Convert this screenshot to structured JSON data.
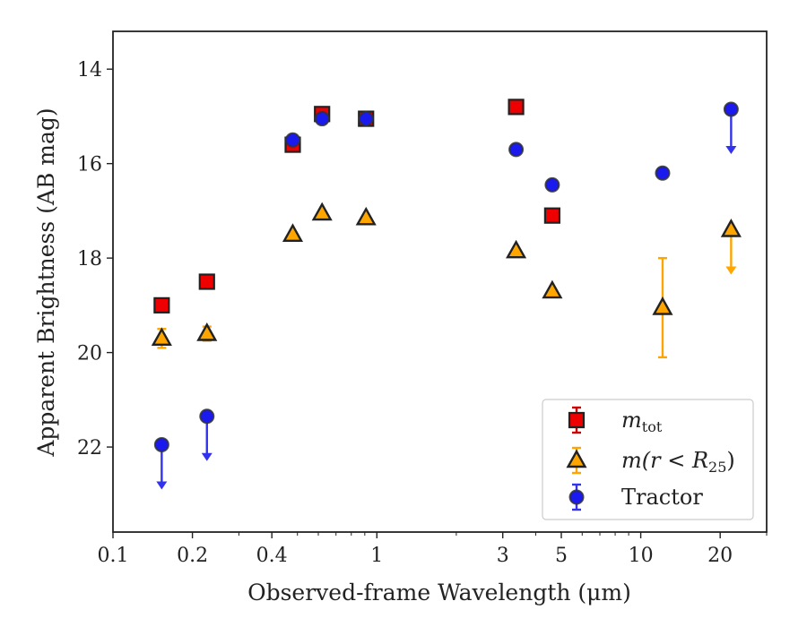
{
  "chart_data": {
    "type": "scatter",
    "xlabel": "Observed-frame Wavelength (μm)",
    "ylabel": "Apparent Brightness (AB mag)",
    "xscale": "log",
    "xlim": [
      0.1,
      30
    ],
    "ylim": [
      23.8,
      13.2
    ],
    "y_inverted": true,
    "x_ticks": [
      0.1,
      0.2,
      0.4,
      1,
      3,
      5,
      10,
      20
    ],
    "x_tick_labels": [
      "0.1",
      "0.2",
      "0.4",
      "1",
      "3",
      "5",
      "10",
      "20"
    ],
    "y_ticks": [
      14,
      16,
      18,
      20,
      22
    ],
    "y_tick_labels": [
      "14",
      "16",
      "18",
      "20",
      "22"
    ],
    "legend_position": "lower-right",
    "series": [
      {
        "name": "m_tot",
        "legend_label": "m",
        "legend_sub": "tot",
        "marker": "square",
        "color": "#ee0000",
        "errcolor": "#cc0000",
        "points": [
          {
            "x": 0.153,
            "y": 19.0
          },
          {
            "x": 0.227,
            "y": 18.5
          },
          {
            "x": 0.48,
            "y": 15.6
          },
          {
            "x": 0.62,
            "y": 14.95
          },
          {
            "x": 0.91,
            "y": 15.05
          },
          {
            "x": 3.37,
            "y": 14.8
          },
          {
            "x": 4.62,
            "y": 17.1
          }
        ]
      },
      {
        "name": "m(r < R25)",
        "legend_label": "m(r < R",
        "legend_sub": "25",
        "legend_close": ")",
        "marker": "triangle",
        "color": "#ffa500",
        "errcolor": "#ffa500",
        "points": [
          {
            "x": 0.153,
            "y": 19.7,
            "err": 0.2
          },
          {
            "x": 0.227,
            "y": 19.6,
            "err": 0.15
          },
          {
            "x": 0.48,
            "y": 17.5
          },
          {
            "x": 0.62,
            "y": 17.05
          },
          {
            "x": 0.91,
            "y": 17.15
          },
          {
            "x": 3.37,
            "y": 17.85
          },
          {
            "x": 4.62,
            "y": 18.7
          },
          {
            "x": 12.1,
            "y": 19.05,
            "err": 1.05
          },
          {
            "x": 22.0,
            "y": 17.4,
            "upper_limit": true
          }
        ]
      },
      {
        "name": "Tractor",
        "legend_label": "Tractor",
        "marker": "circle",
        "color": "#1a1aee",
        "errcolor": "#3333ee",
        "points": [
          {
            "x": 0.153,
            "y": 21.95,
            "upper_limit": true
          },
          {
            "x": 0.227,
            "y": 21.35,
            "upper_limit": true
          },
          {
            "x": 0.48,
            "y": 15.5
          },
          {
            "x": 0.62,
            "y": 15.05
          },
          {
            "x": 0.91,
            "y": 15.05
          },
          {
            "x": 3.37,
            "y": 15.7
          },
          {
            "x": 4.62,
            "y": 16.45
          },
          {
            "x": 12.1,
            "y": 16.2
          },
          {
            "x": 22.0,
            "y": 14.85,
            "upper_limit": true
          }
        ]
      }
    ]
  }
}
